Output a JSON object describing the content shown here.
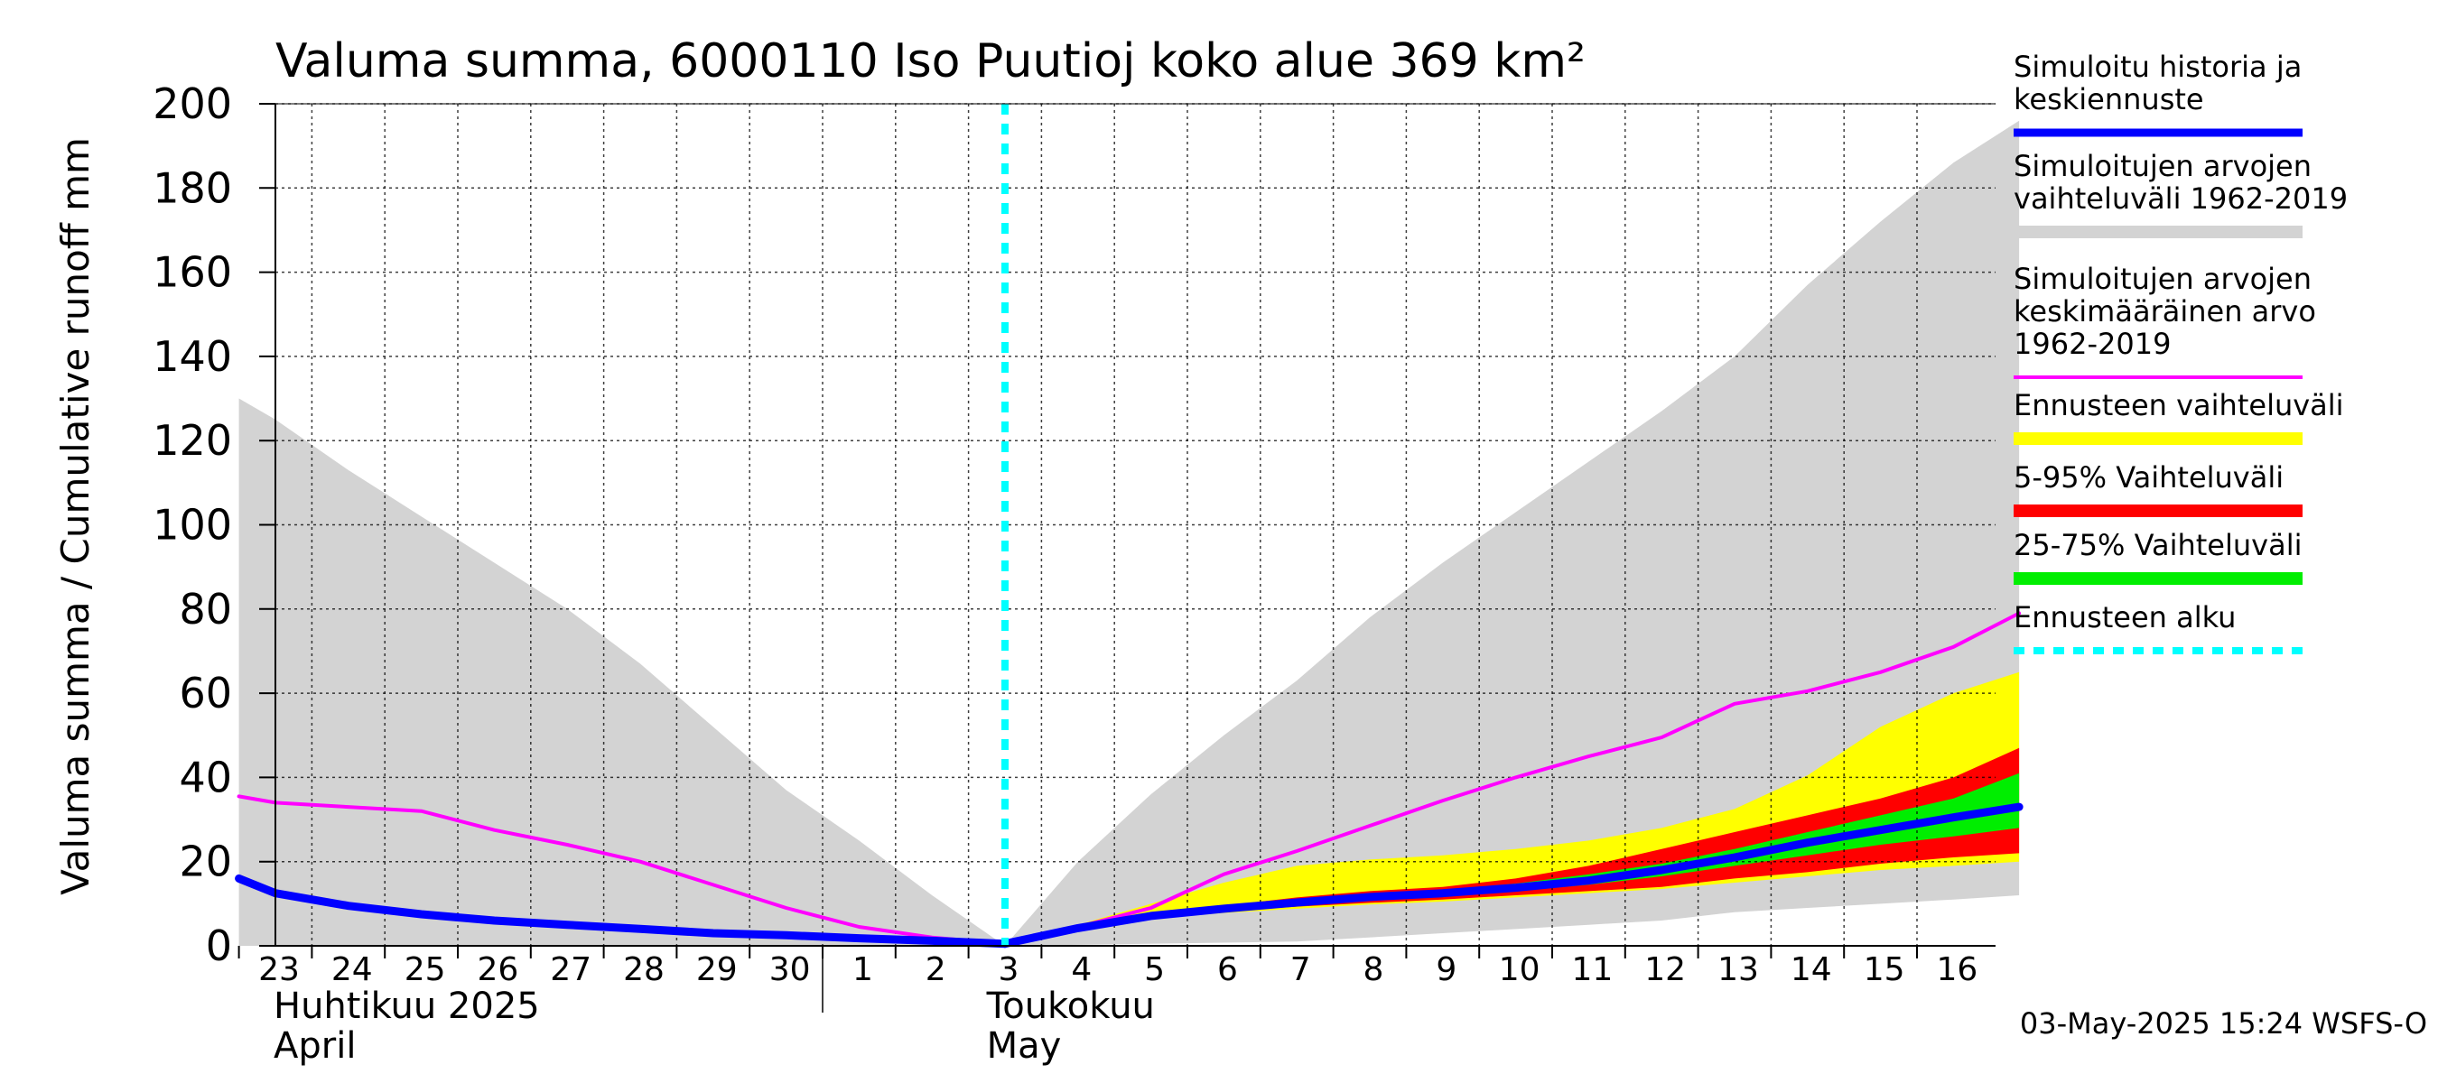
{
  "chart_data": {
    "type": "area",
    "title": "Valuma summa, 6000110 Iso Puutioj koko alue 369 km²",
    "ylabel": "Valuma summa / Cumulative runoff     mm",
    "ylim": [
      0,
      200
    ],
    "yticks": [
      0,
      20,
      40,
      60,
      80,
      100,
      120,
      140,
      160,
      180,
      200
    ],
    "x_day_labels": [
      "23",
      "24",
      "25",
      "26",
      "27",
      "28",
      "29",
      "30",
      "1",
      "2",
      "3",
      "4",
      "5",
      "6",
      "7",
      "8",
      "9",
      "10",
      "11",
      "12",
      "13",
      "14",
      "15",
      "16"
    ],
    "month_labels": [
      {
        "fi": "Huhtikuu  2025",
        "en": "April"
      },
      {
        "fi": "Toukokuu",
        "en": "May"
      }
    ],
    "grid": true,
    "legend_position": "right",
    "forecast_start_day": 10.0,
    "timestamp": "03-May-2025 15:24 WSFS-O",
    "colors": {
      "history": "#0000ff",
      "range_all": "#d3d3d3",
      "mean": "#ff00ff",
      "forecast_range": "#ffff00",
      "p5_95": "#ff0000",
      "p25_75": "#00ee00",
      "forecast_start": "#00ffff"
    },
    "series": {
      "range_all_upper": [
        [
          -0.5,
          130
        ],
        [
          0,
          125
        ],
        [
          1,
          113
        ],
        [
          2,
          102
        ],
        [
          3,
          91
        ],
        [
          4,
          80
        ],
        [
          5,
          67
        ],
        [
          6,
          52
        ],
        [
          7,
          37
        ],
        [
          8,
          25
        ],
        [
          9,
          12
        ],
        [
          10,
          0
        ],
        [
          11,
          20
        ],
        [
          12,
          36
        ],
        [
          13,
          50
        ],
        [
          14,
          63
        ],
        [
          15,
          78
        ],
        [
          16,
          91
        ],
        [
          17,
          103
        ],
        [
          18,
          115
        ],
        [
          19,
          127
        ],
        [
          20,
          140
        ],
        [
          21,
          157
        ],
        [
          22,
          172
        ],
        [
          23,
          186
        ],
        [
          23.9,
          196
        ]
      ],
      "range_all_lower": [
        [
          -0.5,
          0
        ],
        [
          10,
          0
        ],
        [
          14,
          1
        ],
        [
          16,
          3
        ],
        [
          18,
          5
        ],
        [
          19,
          6
        ],
        [
          20,
          8
        ],
        [
          21,
          9
        ],
        [
          22,
          10
        ],
        [
          23,
          11
        ],
        [
          23.9,
          12
        ]
      ],
      "mean": [
        [
          -0.5,
          35.5
        ],
        [
          0,
          34
        ],
        [
          1,
          33
        ],
        [
          2,
          32
        ],
        [
          3,
          27.5
        ],
        [
          4,
          24
        ],
        [
          5,
          20
        ],
        [
          6,
          14.5
        ],
        [
          7,
          9
        ],
        [
          8,
          4.5
        ],
        [
          9,
          2
        ],
        [
          10,
          0.5
        ],
        [
          11,
          4.5
        ],
        [
          12,
          9
        ],
        [
          13,
          17
        ],
        [
          14,
          22.5
        ],
        [
          15,
          28.5
        ],
        [
          16,
          34.5
        ],
        [
          17,
          40
        ],
        [
          18,
          45
        ],
        [
          19,
          49.5
        ],
        [
          20,
          57.5
        ],
        [
          21,
          60.5
        ],
        [
          22,
          65
        ],
        [
          23,
          71
        ],
        [
          23.9,
          79
        ]
      ],
      "history": [
        [
          -0.5,
          16
        ],
        [
          0,
          12.5
        ],
        [
          1,
          9.5
        ],
        [
          2,
          7.5
        ],
        [
          3,
          6
        ],
        [
          4,
          5
        ],
        [
          5,
          4
        ],
        [
          6,
          3
        ],
        [
          7,
          2.5
        ],
        [
          8,
          1.8
        ],
        [
          9,
          1.2
        ],
        [
          10,
          0.5
        ]
      ],
      "forecast_max": [
        [
          10,
          0.5
        ],
        [
          11,
          5
        ],
        [
          12,
          10
        ],
        [
          13,
          15
        ],
        [
          14,
          19
        ],
        [
          15,
          20.5
        ],
        [
          16,
          21.5
        ],
        [
          17,
          23
        ],
        [
          18,
          25
        ],
        [
          19,
          28
        ],
        [
          20,
          32.5
        ],
        [
          21,
          40.5
        ],
        [
          22,
          52
        ],
        [
          23,
          60
        ],
        [
          23.9,
          65
        ]
      ],
      "forecast_min": [
        [
          10,
          0.5
        ],
        [
          11,
          4
        ],
        [
          12,
          6.5
        ],
        [
          13,
          7.8
        ],
        [
          14,
          8.8
        ],
        [
          15,
          9.8
        ],
        [
          16,
          10.5
        ],
        [
          17,
          11.5
        ],
        [
          18,
          12.5
        ],
        [
          19,
          13.5
        ],
        [
          20,
          15
        ],
        [
          21,
          16.5
        ],
        [
          22,
          18
        ],
        [
          23,
          19
        ],
        [
          23.9,
          20
        ]
      ],
      "p95": [
        [
          10,
          0.5
        ],
        [
          11,
          4.5
        ],
        [
          12,
          7.5
        ],
        [
          13,
          9.5
        ],
        [
          14,
          11.5
        ],
        [
          15,
          13
        ],
        [
          16,
          14
        ],
        [
          17,
          16
        ],
        [
          18,
          19
        ],
        [
          19,
          23
        ],
        [
          20,
          27
        ],
        [
          21,
          31
        ],
        [
          22,
          35
        ],
        [
          23,
          40
        ],
        [
          23.9,
          47
        ]
      ],
      "p5": [
        [
          10,
          0.5
        ],
        [
          11,
          4
        ],
        [
          12,
          6.8
        ],
        [
          13,
          8.2
        ],
        [
          14,
          9.3
        ],
        [
          15,
          10.2
        ],
        [
          16,
          11
        ],
        [
          17,
          12
        ],
        [
          18,
          13
        ],
        [
          19,
          14
        ],
        [
          20,
          16
        ],
        [
          21,
          17.5
        ],
        [
          22,
          19.5
        ],
        [
          23,
          21
        ],
        [
          23.9,
          22
        ]
      ],
      "p75": [
        [
          10,
          0.5
        ],
        [
          11,
          4.3
        ],
        [
          12,
          7.2
        ],
        [
          13,
          9
        ],
        [
          14,
          10.8
        ],
        [
          15,
          12.2
        ],
        [
          16,
          13.2
        ],
        [
          17,
          14.8
        ],
        [
          18,
          17
        ],
        [
          19,
          19.5
        ],
        [
          20,
          23
        ],
        [
          21,
          27
        ],
        [
          22,
          31
        ],
        [
          23,
          35
        ],
        [
          23.9,
          41
        ]
      ],
      "p25": [
        [
          10,
          0.5
        ],
        [
          11,
          4.1
        ],
        [
          12,
          7
        ],
        [
          13,
          8.6
        ],
        [
          14,
          10
        ],
        [
          15,
          11
        ],
        [
          16,
          11.8
        ],
        [
          17,
          13
        ],
        [
          18,
          14.5
        ],
        [
          19,
          16.5
        ],
        [
          20,
          19
        ],
        [
          21,
          21.5
        ],
        [
          22,
          24
        ],
        [
          23,
          26
        ],
        [
          23.9,
          28
        ]
      ],
      "median_forecast": [
        [
          10,
          0.5
        ],
        [
          11,
          4.2
        ],
        [
          12,
          7.1
        ],
        [
          13,
          8.8
        ],
        [
          14,
          10.3
        ],
        [
          15,
          11.6
        ],
        [
          16,
          12.5
        ],
        [
          17,
          13.8
        ],
        [
          18,
          15.5
        ],
        [
          19,
          18
        ],
        [
          20,
          21
        ],
        [
          21,
          24.5
        ],
        [
          22,
          27.5
        ],
        [
          23,
          30.5
        ],
        [
          23.9,
          33
        ]
      ]
    },
    "legend": [
      {
        "key": "history",
        "lines": [
          "Simuloitu historia ja",
          "keskiennuste"
        ],
        "style": "line"
      },
      {
        "key": "range_all",
        "lines": [
          "Simuloitujen arvojen",
          "vaihteluväli 1962-2019"
        ],
        "style": "band"
      },
      {
        "key": "mean",
        "lines": [
          "Simuloitujen arvojen",
          "keskimääräinen arvo",
          "   1962-2019"
        ],
        "style": "thin"
      },
      {
        "key": "forecast_range",
        "lines": [
          "Ennusteen vaihteluväli"
        ],
        "style": "band"
      },
      {
        "key": "p5_95",
        "lines": [
          "5-95% Vaihteluväli"
        ],
        "style": "band"
      },
      {
        "key": "p25_75",
        "lines": [
          "25-75% Vaihteluväli"
        ],
        "style": "band"
      },
      {
        "key": "forecast_start",
        "lines": [
          "Ennusteen alku"
        ],
        "style": "dashed"
      }
    ]
  }
}
